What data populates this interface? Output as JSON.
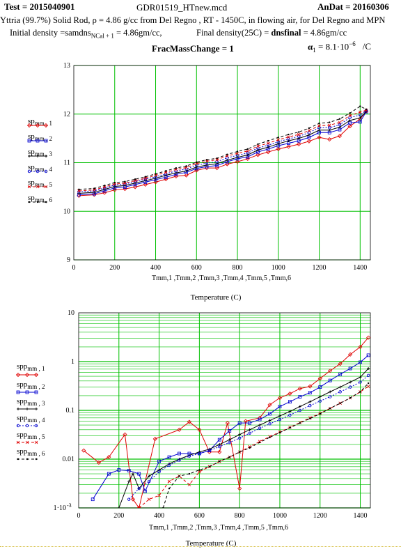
{
  "header": {
    "test_label": "Test = 2015040901",
    "file_name": "GDR01519_HTnew.mcd",
    "andat_label": "AnDat = 20160306",
    "description": "Yttria (99.7%) Solid Rod,  ρ = 4.86 g/cc from Del Regno , RT - 1450C, in flowing air, for Del Regno and MPN",
    "initial_density_prefix": "Initial density =samdns",
    "initial_density_sub": "NCal + 1",
    "initial_density_value": " = 4.86gm/cc,",
    "final_density_prefix": "Final density(25C) = ",
    "final_density_bold": "dnsfinal",
    "final_density_value": " = 4.86gm/cc",
    "frac_mass_change": "FracMassChange = 1",
    "alpha_label": "α",
    "alpha_sub": "1",
    "alpha_value": " = 8.1·10",
    "alpha_exp": "−6",
    "alpha_unit": "/C"
  },
  "colors": {
    "grid": "#00c000",
    "series": [
      "#e00000",
      "#0000d0",
      "#000000",
      "#0000d0",
      "#e00000",
      "#000000"
    ]
  },
  "legend": {
    "top": [
      "sp",
      "sp",
      "sp",
      "sp",
      "sp",
      "sp"
    ],
    "top_sub": [
      "mm , 1",
      "mm , 2",
      "mm , 3",
      "mm , 4",
      "mm , 5",
      "mm , 6"
    ],
    "bottom": [
      "spp",
      "spp",
      "spp",
      "spp",
      "spp",
      "spp"
    ],
    "bottom_sub": [
      "mm , 1",
      "mm , 2",
      "mm , 3",
      "mm , 4",
      "mm , 5",
      "mm , 6"
    ]
  },
  "chart_data": [
    {
      "type": "line",
      "x_axis_label": "Tmm,1 ,Tmm,2 ,Tmm,3 ,Tmm,4 ,Tmm,5 ,Tmm,6",
      "xlabel": "Temperature (C)",
      "xlim": [
        0,
        1450
      ],
      "xticks": [
        0,
        200,
        400,
        600,
        800,
        1000,
        1200,
        1400
      ],
      "ylim": [
        9,
        13
      ],
      "yticks": [
        9,
        10,
        11,
        12,
        13
      ],
      "grid": true,
      "x": [
        25,
        100,
        150,
        200,
        250,
        300,
        350,
        400,
        450,
        500,
        550,
        600,
        650,
        700,
        750,
        800,
        850,
        900,
        950,
        1000,
        1050,
        1100,
        1150,
        1200,
        1250,
        1300,
        1350,
        1400,
        1430
      ],
      "series": [
        {
          "name": "sp mm,1",
          "values": [
            10.32,
            10.34,
            10.38,
            10.44,
            10.46,
            10.5,
            10.55,
            10.6,
            10.66,
            10.72,
            10.74,
            10.84,
            10.89,
            10.89,
            10.97,
            11.02,
            11.08,
            11.16,
            11.22,
            11.28,
            11.33,
            11.38,
            11.44,
            11.52,
            11.48,
            11.55,
            11.75,
            11.9,
            12.06
          ]
        },
        {
          "name": "sp mm,2",
          "values": [
            10.34,
            10.36,
            10.42,
            10.48,
            10.5,
            10.55,
            10.6,
            10.65,
            10.7,
            10.76,
            10.8,
            10.88,
            10.92,
            10.94,
            11.02,
            11.08,
            11.12,
            11.22,
            11.28,
            11.35,
            11.4,
            11.45,
            11.52,
            11.62,
            11.62,
            11.68,
            11.82,
            11.84,
            12.05
          ]
        },
        {
          "name": "sp mm,3",
          "values": [
            10.37,
            10.39,
            10.45,
            10.51,
            10.53,
            10.58,
            10.63,
            10.68,
            10.74,
            10.79,
            10.83,
            10.91,
            10.95,
            10.98,
            11.05,
            11.11,
            11.16,
            11.26,
            11.32,
            11.39,
            11.45,
            11.5,
            11.57,
            11.67,
            11.67,
            11.73,
            11.87,
            11.92,
            12.06
          ]
        },
        {
          "name": "sp mm,4",
          "values": [
            10.4,
            10.42,
            10.48,
            10.54,
            10.56,
            10.61,
            10.66,
            10.71,
            10.77,
            10.83,
            10.87,
            10.95,
            10.99,
            11.02,
            11.1,
            11.15,
            11.2,
            11.3,
            11.36,
            11.43,
            11.49,
            11.54,
            11.62,
            11.72,
            11.72,
            11.78,
            11.93,
            11.98,
            12.07
          ]
        },
        {
          "name": "sp mm,5",
          "values": [
            10.42,
            10.44,
            10.5,
            10.56,
            10.58,
            10.63,
            10.68,
            10.74,
            10.8,
            10.86,
            10.9,
            10.98,
            11.03,
            11.06,
            11.14,
            11.19,
            11.24,
            11.34,
            11.4,
            11.47,
            11.53,
            11.58,
            11.66,
            11.76,
            11.77,
            11.83,
            11.97,
            12.04,
            12.08
          ]
        },
        {
          "name": "sp mm,6",
          "values": [
            10.45,
            10.47,
            10.53,
            10.59,
            10.61,
            10.66,
            10.71,
            10.77,
            10.83,
            10.89,
            10.93,
            11.01,
            11.06,
            11.09,
            11.17,
            11.23,
            11.28,
            11.38,
            11.45,
            11.52,
            11.58,
            11.63,
            11.71,
            11.81,
            11.83,
            11.9,
            12.02,
            12.16,
            12.1
          ]
        }
      ]
    },
    {
      "type": "line",
      "scale": "log",
      "x_axis_label": "Tmm,1 ,Tmm,2 ,Tmm,3 ,Tmm,4 ,Tmm,5 ,Tmm,6",
      "xlabel": "Temperature (C)",
      "xlim": [
        0,
        1450
      ],
      "xticks": [
        0,
        200,
        400,
        600,
        800,
        1000,
        1200,
        1400
      ],
      "ylim": [
        0.001,
        10
      ],
      "yticks": [
        {
          "v": 0.001,
          "label": "1·10"
        },
        {
          "v": 0.01,
          "label": "0.01"
        },
        {
          "v": 0.1,
          "label": "0.1"
        },
        {
          "v": 1,
          "label": "1"
        },
        {
          "v": 10,
          "label": "10"
        }
      ],
      "ytick_exp": "-3",
      "grid": true,
      "series": [
        {
          "name": "spp mm,1",
          "points": [
            [
              25,
              0.015
            ],
            [
              100,
              0.0085
            ],
            [
              150,
              0.011
            ],
            [
              230,
              0.032
            ],
            [
              270,
              0.0015
            ],
            [
              300,
              0.001
            ],
            [
              380,
              0.026
            ],
            [
              500,
              0.04
            ],
            [
              550,
              0.058
            ],
            [
              600,
              0.04
            ],
            [
              650,
              0.014
            ],
            [
              700,
              0.014
            ],
            [
              740,
              0.055
            ],
            [
              800,
              0.0025
            ],
            [
              830,
              0.06
            ],
            [
              900,
              0.07
            ],
            [
              950,
              0.13
            ],
            [
              1000,
              0.18
            ],
            [
              1050,
              0.22
            ],
            [
              1100,
              0.28
            ],
            [
              1150,
              0.31
            ],
            [
              1200,
              0.45
            ],
            [
              1250,
              0.65
            ],
            [
              1300,
              0.9
            ],
            [
              1350,
              1.4
            ],
            [
              1400,
              2.0
            ],
            [
              1440,
              3.1
            ]
          ]
        },
        {
          "name": "spp mm,2",
          "points": [
            [
              70,
              0.0015
            ],
            [
              150,
              0.005
            ],
            [
              200,
              0.006
            ],
            [
              250,
              0.0058
            ],
            [
              300,
              0.005
            ],
            [
              330,
              0.0022
            ],
            [
              400,
              0.009
            ],
            [
              450,
              0.011
            ],
            [
              500,
              0.013
            ],
            [
              550,
              0.013
            ],
            [
              600,
              0.013
            ],
            [
              650,
              0.015
            ],
            [
              700,
              0.025
            ],
            [
              750,
              0.038
            ],
            [
              800,
              0.055
            ],
            [
              850,
              0.055
            ],
            [
              900,
              0.065
            ],
            [
              950,
              0.085
            ],
            [
              1000,
              0.12
            ],
            [
              1050,
              0.15
            ],
            [
              1100,
              0.19
            ],
            [
              1150,
              0.23
            ],
            [
              1200,
              0.3
            ],
            [
              1250,
              0.41
            ],
            [
              1300,
              0.55
            ],
            [
              1350,
              0.72
            ],
            [
              1400,
              0.97
            ],
            [
              1440,
              1.35
            ]
          ]
        },
        {
          "name": "spp mm,3",
          "points": [
            [
              200,
              0.001
            ],
            [
              250,
              0.0035
            ],
            [
              270,
              0.005
            ],
            [
              300,
              0.0025
            ],
            [
              350,
              0.0045
            ],
            [
              400,
              0.006
            ],
            [
              450,
              0.008
            ],
            [
              500,
              0.01
            ],
            [
              550,
              0.012
            ],
            [
              600,
              0.014
            ],
            [
              650,
              0.016
            ],
            [
              700,
              0.02
            ],
            [
              750,
              0.025
            ],
            [
              800,
              0.032
            ],
            [
              850,
              0.04
            ],
            [
              900,
              0.05
            ],
            [
              950,
              0.062
            ],
            [
              1000,
              0.077
            ],
            [
              1050,
              0.095
            ],
            [
              1100,
              0.12
            ],
            [
              1150,
              0.15
            ],
            [
              1200,
              0.19
            ],
            [
              1250,
              0.24
            ],
            [
              1300,
              0.3
            ],
            [
              1350,
              0.38
            ],
            [
              1400,
              0.48
            ],
            [
              1440,
              0.72
            ]
          ]
        },
        {
          "name": "spp mm,4",
          "points": [
            [
              250,
              0.0015
            ],
            [
              300,
              0.0025
            ],
            [
              350,
              0.0035
            ],
            [
              400,
              0.0055
            ],
            [
              450,
              0.0075
            ],
            [
              500,
              0.0095
            ],
            [
              550,
              0.0115
            ],
            [
              600,
              0.013
            ],
            [
              650,
              0.015
            ],
            [
              700,
              0.018
            ],
            [
              750,
              0.022
            ],
            [
              800,
              0.027
            ],
            [
              850,
              0.034
            ],
            [
              900,
              0.043
            ],
            [
              950,
              0.053
            ],
            [
              1000,
              0.065
            ],
            [
              1050,
              0.08
            ],
            [
              1100,
              0.1
            ],
            [
              1150,
              0.125
            ],
            [
              1200,
              0.155
            ],
            [
              1250,
              0.19
            ],
            [
              1300,
              0.24
            ],
            [
              1350,
              0.3
            ],
            [
              1400,
              0.38
            ],
            [
              1440,
              0.52
            ]
          ]
        },
        {
          "name": "spp mm,5",
          "points": [
            [
              300,
              0.001
            ],
            [
              350,
              0.0015
            ],
            [
              400,
              0.0018
            ],
            [
              450,
              0.0035
            ],
            [
              500,
              0.0045
            ],
            [
              550,
              0.003
            ],
            [
              600,
              0.0055
            ],
            [
              650,
              0.007
            ],
            [
              700,
              0.009
            ],
            [
              750,
              0.011
            ],
            [
              800,
              0.014
            ],
            [
              850,
              0.018
            ],
            [
              900,
              0.023
            ],
            [
              950,
              0.029
            ],
            [
              1000,
              0.036
            ],
            [
              1050,
              0.045
            ],
            [
              1100,
              0.056
            ],
            [
              1150,
              0.07
            ],
            [
              1200,
              0.087
            ],
            [
              1250,
              0.11
            ],
            [
              1300,
              0.14
            ],
            [
              1350,
              0.18
            ],
            [
              1400,
              0.24
            ],
            [
              1440,
              0.31
            ]
          ]
        },
        {
          "name": "spp mm,6",
          "points": [
            [
              420,
              0.001
            ],
            [
              450,
              0.0025
            ],
            [
              500,
              0.0045
            ],
            [
              550,
              0.005
            ],
            [
              600,
              0.006
            ],
            [
              650,
              0.007
            ],
            [
              700,
              0.009
            ],
            [
              750,
              0.011
            ],
            [
              800,
              0.014
            ],
            [
              850,
              0.017
            ],
            [
              900,
              0.022
            ],
            [
              950,
              0.028
            ],
            [
              1000,
              0.035
            ],
            [
              1050,
              0.044
            ],
            [
              1100,
              0.055
            ],
            [
              1150,
              0.068
            ],
            [
              1200,
              0.085
            ],
            [
              1250,
              0.11
            ],
            [
              1300,
              0.14
            ],
            [
              1350,
              0.18
            ],
            [
              1400,
              0.24
            ],
            [
              1440,
              0.36
            ]
          ]
        }
      ]
    }
  ]
}
